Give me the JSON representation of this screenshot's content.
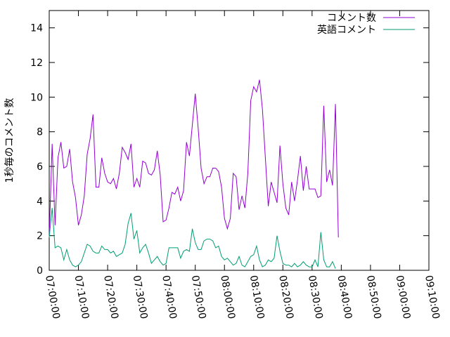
{
  "chart_data": {
    "type": "line",
    "title": "",
    "xlabel": "",
    "ylabel": "1秒毎のコメント数",
    "ylim": [
      0,
      15
    ],
    "yticks": [
      0,
      2,
      4,
      6,
      8,
      10,
      12,
      14
    ],
    "xlim": [
      "07:00:00",
      "09:10:00"
    ],
    "xticks": [
      "07:00:00",
      "07:10:00",
      "07:20:00",
      "07:30:00",
      "07:40:00",
      "07:50:00",
      "08:00:00",
      "08:10:00",
      "08:20:00",
      "08:30:00",
      "08:40:00",
      "08:50:00",
      "09:00:00",
      "09:10:00"
    ],
    "grid": false,
    "legend_position": "top-right",
    "series": [
      {
        "name": "コメント数",
        "color": "#9400d3",
        "points": [
          [
            "07:00:00",
            1.9
          ],
          [
            "07:01:00",
            7.3
          ],
          [
            "07:02:00",
            2.6
          ],
          [
            "07:03:00",
            6.5
          ],
          [
            "07:04:00",
            7.4
          ],
          [
            "07:05:00",
            5.9
          ],
          [
            "07:06:00",
            6.0
          ],
          [
            "07:07:00",
            7.0
          ],
          [
            "07:08:00",
            5.1
          ],
          [
            "07:09:00",
            4.2
          ],
          [
            "07:10:00",
            2.6
          ],
          [
            "07:11:00",
            3.2
          ],
          [
            "07:12:00",
            4.3
          ],
          [
            "07:13:00",
            6.7
          ],
          [
            "07:14:00",
            7.6
          ],
          [
            "07:15:00",
            9.0
          ],
          [
            "07:16:00",
            4.8
          ],
          [
            "07:17:00",
            4.8
          ],
          [
            "07:18:00",
            6.5
          ],
          [
            "07:19:00",
            5.6
          ],
          [
            "07:20:00",
            5.1
          ],
          [
            "07:21:00",
            5.0
          ],
          [
            "07:22:00",
            5.3
          ],
          [
            "07:23:00",
            4.7
          ],
          [
            "07:24:00",
            5.6
          ],
          [
            "07:25:00",
            7.1
          ],
          [
            "07:26:00",
            6.8
          ],
          [
            "07:27:00",
            6.4
          ],
          [
            "07:28:00",
            7.3
          ],
          [
            "07:29:00",
            4.8
          ],
          [
            "07:30:00",
            5.3
          ],
          [
            "07:31:00",
            4.8
          ],
          [
            "07:32:00",
            6.3
          ],
          [
            "07:33:00",
            6.2
          ],
          [
            "07:34:00",
            5.6
          ],
          [
            "07:35:00",
            5.5
          ],
          [
            "07:36:00",
            5.8
          ],
          [
            "07:37:00",
            6.9
          ],
          [
            "07:38:00",
            5.5
          ],
          [
            "07:39:00",
            2.8
          ],
          [
            "07:40:00",
            2.9
          ],
          [
            "07:41:00",
            3.6
          ],
          [
            "07:42:00",
            4.5
          ],
          [
            "07:43:00",
            4.4
          ],
          [
            "07:44:00",
            4.8
          ],
          [
            "07:45:00",
            4.0
          ],
          [
            "07:46:00",
            4.6
          ],
          [
            "07:47:00",
            7.4
          ],
          [
            "07:48:00",
            6.6
          ],
          [
            "07:49:00",
            8.4
          ],
          [
            "07:50:00",
            10.2
          ],
          [
            "07:51:00",
            8.2
          ],
          [
            "07:52:00",
            5.9
          ],
          [
            "07:53:00",
            5.0
          ],
          [
            "07:54:00",
            5.4
          ],
          [
            "07:55:00",
            5.4
          ],
          [
            "07:56:00",
            5.9
          ],
          [
            "07:57:00",
            5.9
          ],
          [
            "07:58:00",
            5.7
          ],
          [
            "07:59:00",
            4.8
          ],
          [
            "08:00:00",
            3.0
          ],
          [
            "08:01:00",
            2.4
          ],
          [
            "08:02:00",
            3.0
          ],
          [
            "08:03:00",
            5.6
          ],
          [
            "08:04:00",
            5.4
          ],
          [
            "08:05:00",
            3.5
          ],
          [
            "08:06:00",
            4.3
          ],
          [
            "08:07:00",
            3.6
          ],
          [
            "08:08:00",
            5.6
          ],
          [
            "08:09:00",
            9.8
          ],
          [
            "08:10:00",
            10.6
          ],
          [
            "08:11:00",
            10.3
          ],
          [
            "08:12:00",
            11.0
          ],
          [
            "08:13:00",
            9.3
          ],
          [
            "08:14:00",
            6.5
          ],
          [
            "08:15:00",
            3.7
          ],
          [
            "08:16:00",
            5.1
          ],
          [
            "08:17:00",
            4.5
          ],
          [
            "08:18:00",
            3.9
          ],
          [
            "08:19:00",
            7.2
          ],
          [
            "08:20:00",
            5.0
          ],
          [
            "08:21:00",
            3.6
          ],
          [
            "08:22:00",
            3.2
          ],
          [
            "08:23:00",
            5.1
          ],
          [
            "08:24:00",
            4.0
          ],
          [
            "08:25:00",
            5.2
          ],
          [
            "08:26:00",
            6.6
          ],
          [
            "08:27:00",
            4.6
          ],
          [
            "08:28:00",
            6.0
          ],
          [
            "08:29:00",
            4.7
          ],
          [
            "08:30:00",
            4.7
          ],
          [
            "08:31:00",
            4.7
          ],
          [
            "08:32:00",
            4.2
          ],
          [
            "08:33:00",
            4.3
          ],
          [
            "08:34:00",
            9.5
          ],
          [
            "08:35:00",
            5.1
          ],
          [
            "08:36:00",
            5.8
          ],
          [
            "08:37:00",
            4.9
          ],
          [
            "08:38:00",
            9.6
          ],
          [
            "08:39:00",
            1.9
          ]
        ]
      },
      {
        "name": "英語コメント",
        "color": "#009e73",
        "points": [
          [
            "07:00:00",
            1.9
          ],
          [
            "07:01:00",
            3.6
          ],
          [
            "07:02:00",
            1.3
          ],
          [
            "07:03:00",
            1.4
          ],
          [
            "07:04:00",
            1.3
          ],
          [
            "07:05:00",
            0.6
          ],
          [
            "07:06:00",
            1.2
          ],
          [
            "07:07:00",
            0.6
          ],
          [
            "07:08:00",
            0.3
          ],
          [
            "07:09:00",
            0.2
          ],
          [
            "07:10:00",
            0.3
          ],
          [
            "07:11:00",
            0.5
          ],
          [
            "07:12:00",
            1.0
          ],
          [
            "07:13:00",
            1.5
          ],
          [
            "07:14:00",
            1.4
          ],
          [
            "07:15:00",
            1.1
          ],
          [
            "07:16:00",
            1.0
          ],
          [
            "07:17:00",
            1.0
          ],
          [
            "07:18:00",
            1.4
          ],
          [
            "07:19:00",
            1.2
          ],
          [
            "07:20:00",
            1.2
          ],
          [
            "07:21:00",
            1.0
          ],
          [
            "07:22:00",
            1.1
          ],
          [
            "07:23:00",
            0.8
          ],
          [
            "07:24:00",
            0.9
          ],
          [
            "07:25:00",
            1.0
          ],
          [
            "07:26:00",
            1.5
          ],
          [
            "07:27:00",
            2.7
          ],
          [
            "07:28:00",
            3.3
          ],
          [
            "07:29:00",
            1.8
          ],
          [
            "07:30:00",
            2.3
          ],
          [
            "07:31:00",
            1.0
          ],
          [
            "07:32:00",
            1.3
          ],
          [
            "07:33:00",
            1.5
          ],
          [
            "07:34:00",
            1.0
          ],
          [
            "07:35:00",
            0.4
          ],
          [
            "07:36:00",
            0.6
          ],
          [
            "07:37:00",
            0.8
          ],
          [
            "07:38:00",
            0.5
          ],
          [
            "07:39:00",
            0.3
          ],
          [
            "07:40:00",
            0.4
          ],
          [
            "07:41:00",
            1.3
          ],
          [
            "07:42:00",
            1.3
          ],
          [
            "07:43:00",
            1.3
          ],
          [
            "07:44:00",
            1.3
          ],
          [
            "07:45:00",
            0.7
          ],
          [
            "07:46:00",
            1.1
          ],
          [
            "07:47:00",
            1.2
          ],
          [
            "07:48:00",
            1.1
          ],
          [
            "07:49:00",
            2.4
          ],
          [
            "07:50:00",
            1.6
          ],
          [
            "07:51:00",
            1.2
          ],
          [
            "07:52:00",
            1.2
          ],
          [
            "07:53:00",
            1.7
          ],
          [
            "07:54:00",
            1.8
          ],
          [
            "07:55:00",
            1.8
          ],
          [
            "07:56:00",
            1.7
          ],
          [
            "07:57:00",
            1.3
          ],
          [
            "07:58:00",
            1.4
          ],
          [
            "07:59:00",
            0.8
          ],
          [
            "08:00:00",
            0.6
          ],
          [
            "08:01:00",
            0.7
          ],
          [
            "08:02:00",
            0.5
          ],
          [
            "08:03:00",
            0.3
          ],
          [
            "08:04:00",
            0.4
          ],
          [
            "08:05:00",
            0.8
          ],
          [
            "08:06:00",
            0.3
          ],
          [
            "08:07:00",
            0.2
          ],
          [
            "08:08:00",
            0.5
          ],
          [
            "08:09:00",
            0.8
          ],
          [
            "08:10:00",
            0.9
          ],
          [
            "08:11:00",
            1.4
          ],
          [
            "08:12:00",
            0.6
          ],
          [
            "08:13:00",
            0.2
          ],
          [
            "08:14:00",
            0.3
          ],
          [
            "08:15:00",
            0.6
          ],
          [
            "08:16:00",
            0.5
          ],
          [
            "08:17:00",
            0.7
          ],
          [
            "08:18:00",
            2.0
          ],
          [
            "08:19:00",
            1.1
          ],
          [
            "08:20:00",
            0.4
          ],
          [
            "08:21:00",
            0.3
          ],
          [
            "08:22:00",
            0.3
          ],
          [
            "08:23:00",
            0.2
          ],
          [
            "08:24:00",
            0.4
          ],
          [
            "08:25:00",
            0.2
          ],
          [
            "08:26:00",
            0.3
          ],
          [
            "08:27:00",
            0.5
          ],
          [
            "08:28:00",
            0.3
          ],
          [
            "08:29:00",
            0.2
          ],
          [
            "08:30:00",
            0.2
          ],
          [
            "08:31:00",
            0.6
          ],
          [
            "08:32:00",
            0.2
          ],
          [
            "08:33:00",
            2.2
          ],
          [
            "08:34:00",
            0.6
          ],
          [
            "08:35:00",
            0.2
          ],
          [
            "08:36:00",
            0.2
          ],
          [
            "08:37:00",
            0.5
          ],
          [
            "08:38:00",
            0.1
          ]
        ]
      }
    ]
  }
}
